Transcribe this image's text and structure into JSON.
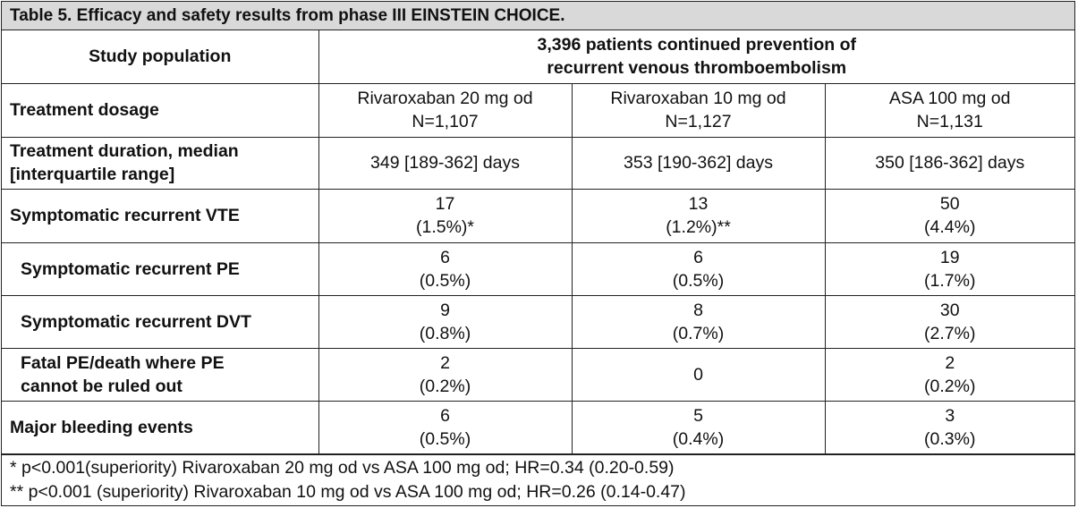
{
  "title": "Table 5. Efficacy and safety results from phase III EINSTEIN CHOICE.",
  "header": {
    "col_label": "Study population",
    "population_line1": "3,396 patients continued prevention of",
    "population_line2": "recurrent venous thromboembolism"
  },
  "rows": [
    {
      "label": [
        "Treatment dosage"
      ],
      "sub": false,
      "cells": [
        [
          "Rivaroxaban 20 mg od",
          "N=1,107"
        ],
        [
          "Rivaroxaban 10 mg od",
          "N=1,127"
        ],
        [
          "ASA 100 mg od",
          "N=1,131"
        ]
      ]
    },
    {
      "label": [
        "Treatment duration, median",
        "[interquartile range]"
      ],
      "sub": false,
      "cells": [
        [
          "349 [189-362] days"
        ],
        [
          "353 [190-362] days"
        ],
        [
          "350 [186-362] days"
        ]
      ]
    },
    {
      "label": [
        "Symptomatic recurrent VTE"
      ],
      "sub": false,
      "cells": [
        [
          "17",
          "(1.5%)*"
        ],
        [
          "13",
          "(1.2%)**"
        ],
        [
          "50",
          "(4.4%)"
        ]
      ]
    },
    {
      "label": [
        "Symptomatic recurrent PE"
      ],
      "sub": true,
      "cells": [
        [
          "6",
          "(0.5%)"
        ],
        [
          "6",
          "(0.5%)"
        ],
        [
          "19",
          "(1.7%)"
        ]
      ]
    },
    {
      "label": [
        "Symptomatic recurrent DVT"
      ],
      "sub": true,
      "cells": [
        [
          "9",
          "(0.8%)"
        ],
        [
          "8",
          "(0.7%)"
        ],
        [
          "30",
          "(2.7%)"
        ]
      ]
    },
    {
      "label": [
        "Fatal PE/death where PE",
        "cannot be ruled out"
      ],
      "sub": true,
      "cells": [
        [
          "2",
          "(0.2%)"
        ],
        [
          "0"
        ],
        [
          "2",
          "(0.2%)"
        ]
      ]
    },
    {
      "label": [
        "Major bleeding events"
      ],
      "sub": false,
      "cells": [
        [
          "6",
          "(0.5%)"
        ],
        [
          "5",
          "(0.4%)"
        ],
        [
          "3",
          "(0.3%)"
        ]
      ]
    }
  ],
  "footnotes": [
    "* p<0.001(superiority) Rivaroxaban 20 mg od vs ASA 100 mg od; HR=0.34 (0.20-0.59)",
    "** p<0.001 (superiority) Rivaroxaban 10 mg od vs ASA 100 mg od; HR=0.26 (0.14-0.47)"
  ]
}
